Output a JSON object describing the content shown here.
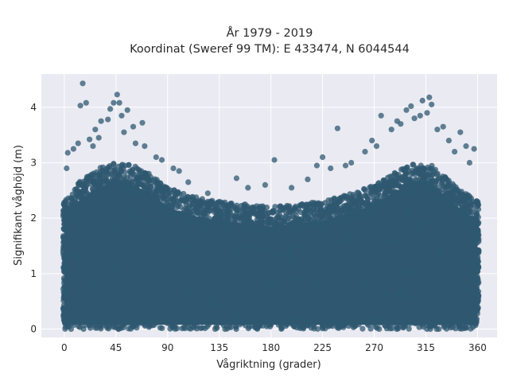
{
  "chart_data": {
    "type": "scatter",
    "title_line1": "År 1979 - 2019",
    "title_line2": "Koordinat (Sweref 99 TM): E 433474, N 6044544",
    "xlabel": "Vågriktning (grader)",
    "ylabel": "Signifikant våghöjd (m)",
    "xlim": [
      -20,
      377
    ],
    "ylim": [
      -0.15,
      4.6
    ],
    "xticks": [
      0,
      45,
      90,
      135,
      180,
      225,
      270,
      315,
      360
    ],
    "yticks": [
      0,
      1,
      2,
      3,
      4
    ],
    "grid": true,
    "legend": "none",
    "colors": {
      "marker": "#2f5870",
      "plot_bg": "#eaeaf2",
      "grid": "#ffffff"
    },
    "envelope": {
      "description_x": [
        0,
        15,
        30,
        45,
        60,
        75,
        90,
        110,
        135,
        160,
        180,
        200,
        225,
        250,
        270,
        290,
        305,
        320,
        340,
        360
      ],
      "upper_y": [
        2.2,
        2.6,
        2.8,
        2.9,
        2.85,
        2.7,
        2.45,
        2.3,
        2.2,
        2.15,
        2.1,
        2.15,
        2.2,
        2.35,
        2.5,
        2.75,
        2.9,
        2.85,
        2.5,
        2.2
      ]
    },
    "outliers": [
      [
        16,
        4.43
      ],
      [
        14,
        4.03
      ],
      [
        19,
        4.08
      ],
      [
        46,
        4.23
      ],
      [
        43,
        4.08
      ],
      [
        48,
        4.08
      ],
      [
        40,
        3.97
      ],
      [
        55,
        3.95
      ],
      [
        38,
        3.78
      ],
      [
        32,
        3.75
      ],
      [
        50,
        3.85
      ],
      [
        60,
        3.65
      ],
      [
        68,
        3.72
      ],
      [
        27,
        3.6
      ],
      [
        52,
        3.55
      ],
      [
        3,
        3.18
      ],
      [
        8,
        3.25
      ],
      [
        12,
        3.35
      ],
      [
        22,
        3.42
      ],
      [
        25,
        3.3
      ],
      [
        30,
        3.45
      ],
      [
        62,
        3.35
      ],
      [
        70,
        3.3
      ],
      [
        80,
        3.1
      ],
      [
        95,
        2.9
      ],
      [
        108,
        2.65
      ],
      [
        125,
        2.45
      ],
      [
        150,
        2.72
      ],
      [
        160,
        2.55
      ],
      [
        175,
        2.6
      ],
      [
        183,
        3.05
      ],
      [
        198,
        2.55
      ],
      [
        212,
        2.7
      ],
      [
        220,
        2.95
      ],
      [
        225,
        3.1
      ],
      [
        232,
        2.9
      ],
      [
        238,
        3.62
      ],
      [
        245,
        2.95
      ],
      [
        250,
        3.0
      ],
      [
        262,
        3.2
      ],
      [
        268,
        3.4
      ],
      [
        272,
        3.3
      ],
      [
        276,
        3.85
      ],
      [
        285,
        3.6
      ],
      [
        290,
        3.75
      ],
      [
        293,
        3.7
      ],
      [
        298,
        3.95
      ],
      [
        302,
        4.02
      ],
      [
        305,
        3.8
      ],
      [
        310,
        3.85
      ],
      [
        312,
        4.12
      ],
      [
        318,
        4.18
      ],
      [
        320,
        4.05
      ],
      [
        316,
        3.9
      ],
      [
        325,
        3.6
      ],
      [
        330,
        3.65
      ],
      [
        335,
        3.4
      ],
      [
        345,
        3.55
      ],
      [
        350,
        3.3
      ],
      [
        357,
        3.25
      ],
      [
        340,
        3.2
      ],
      [
        353,
        3.0
      ],
      [
        2,
        2.9
      ],
      [
        85,
        3.05
      ],
      [
        100,
        2.85
      ]
    ]
  }
}
